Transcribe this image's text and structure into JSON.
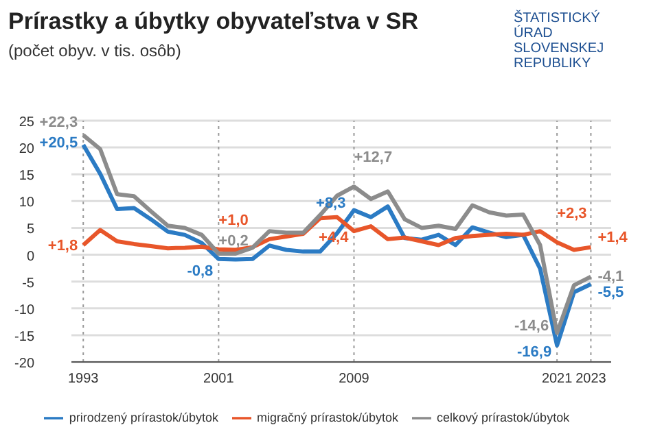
{
  "chart_data": {
    "type": "line",
    "title": "Prírastky a úbytky obyvateľstva v SR",
    "subtitle": "(počet obyv. v tis. osôb)",
    "annotations": [
      "ŠTATISTICKÝ ÚRAD SLOVENSKEJ REPUBLIKY"
    ],
    "x": [
      1993,
      1994,
      1995,
      1996,
      1997,
      1998,
      1999,
      2000,
      2001,
      2002,
      2003,
      2004,
      2005,
      2006,
      2007,
      2008,
      2009,
      2010,
      2011,
      2012,
      2013,
      2014,
      2015,
      2016,
      2017,
      2018,
      2019,
      2020,
      2021,
      2022,
      2023
    ],
    "series": [
      {
        "name": "prirodzený prírastok/úbytok",
        "color": "#2b7bc4",
        "values": [
          20.5,
          15.1,
          8.5,
          8.7,
          6.6,
          4.3,
          3.7,
          2.2,
          -0.8,
          -0.9,
          -0.8,
          1.7,
          0.9,
          0.6,
          0.6,
          4.0,
          8.3,
          7.0,
          9.0,
          3.1,
          2.8,
          3.7,
          1.8,
          5.1,
          4.1,
          3.3,
          3.7,
          -2.6,
          -16.9,
          -7.0,
          -5.5
        ],
        "value_labels": [
          "+20,5",
          null,
          null,
          null,
          null,
          null,
          null,
          null,
          "-0,8",
          null,
          null,
          null,
          null,
          null,
          null,
          null,
          "+8,3",
          null,
          null,
          null,
          null,
          null,
          null,
          null,
          null,
          null,
          null,
          null,
          "-16,9",
          null,
          "-5,5"
        ]
      },
      {
        "name": "migračný prírastok/úbytok",
        "color": "#e8562a",
        "values": [
          1.8,
          4.6,
          2.5,
          2.0,
          1.6,
          1.2,
          1.3,
          1.5,
          1.0,
          0.9,
          1.4,
          2.9,
          3.4,
          3.9,
          6.8,
          7.0,
          4.4,
          5.3,
          2.9,
          3.2,
          2.5,
          1.8,
          3.1,
          3.5,
          3.7,
          3.9,
          3.7,
          4.4,
          2.3,
          0.9,
          1.4
        ],
        "value_labels": [
          "+1,8",
          null,
          null,
          null,
          null,
          null,
          null,
          null,
          "+1,0",
          null,
          null,
          null,
          null,
          null,
          null,
          null,
          "+4,4",
          null,
          null,
          null,
          null,
          null,
          null,
          null,
          null,
          null,
          null,
          null,
          "+2,3",
          null,
          "+1,4"
        ]
      },
      {
        "name": "celkový prírastok/úbytok",
        "color": "#8c8c8c",
        "values": [
          22.3,
          19.7,
          11.3,
          10.9,
          8.1,
          5.4,
          5.0,
          3.7,
          0.2,
          0.2,
          1.3,
          4.4,
          4.1,
          4.1,
          7.4,
          11.0,
          12.7,
          10.4,
          11.8,
          6.6,
          5.0,
          5.4,
          4.8,
          9.2,
          7.9,
          7.3,
          7.5,
          1.8,
          -14.6,
          -5.7,
          -4.1
        ],
        "value_labels": [
          "+22,3",
          null,
          null,
          null,
          null,
          null,
          null,
          null,
          "+0,2",
          null,
          null,
          null,
          null,
          null,
          null,
          null,
          "+12,7",
          null,
          null,
          null,
          null,
          null,
          null,
          null,
          null,
          null,
          null,
          null,
          "-14,6",
          null,
          "-4,1"
        ]
      }
    ],
    "xlim": [
      1992.3,
      2024.2
    ],
    "xticks": [
      1993,
      2001,
      2009,
      2021,
      2023
    ],
    "ylim": [
      -20,
      25
    ],
    "yticks": [
      -20,
      -15,
      -10,
      -5,
      0,
      5,
      10,
      15,
      20,
      25
    ],
    "ref_lines": [
      {
        "axis": "x",
        "value": 1993,
        "label": null,
        "line_style": "dotted",
        "color": "#999999"
      },
      {
        "axis": "x",
        "value": 2001,
        "label": null,
        "line_style": "dotted",
        "color": "#999999"
      },
      {
        "axis": "x",
        "value": 2009,
        "label": null,
        "line_style": "dotted",
        "color": "#999999"
      },
      {
        "axis": "x",
        "value": 2021,
        "label": null,
        "line_style": "dotted",
        "color": "#999999"
      },
      {
        "axis": "x",
        "value": 2023,
        "label": null,
        "line_style": "dotted",
        "color": "#999999"
      }
    ],
    "grid": "y",
    "legend": "bottom",
    "marker": "none",
    "line_style": "solid"
  }
}
